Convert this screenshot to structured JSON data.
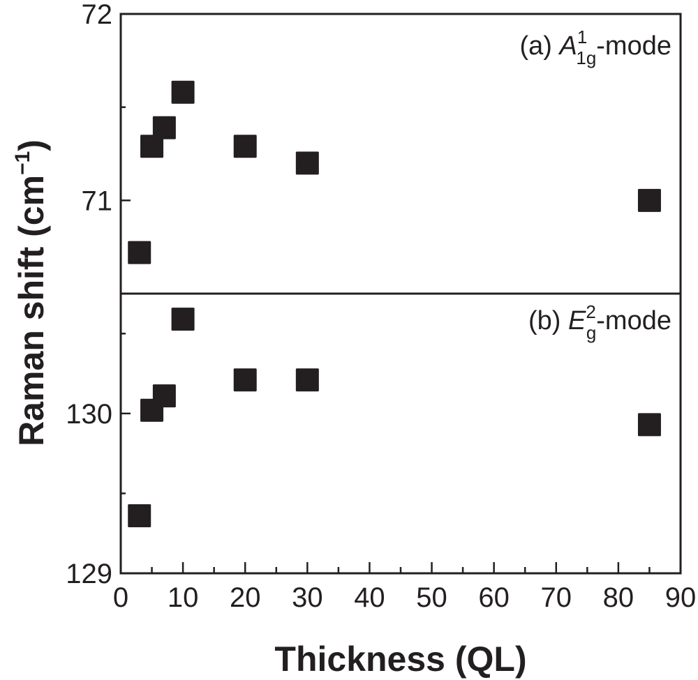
{
  "chart_data": [
    {
      "type": "scatter",
      "panel_label": "(a)",
      "mode_symbol": "A",
      "mode_sup": "1",
      "mode_sub": "1g",
      "mode_suffix": "-mode",
      "x": [
        3,
        5,
        7,
        10,
        20,
        30,
        85
      ],
      "y": [
        70.72,
        71.29,
        71.39,
        71.58,
        71.29,
        71.2,
        71.0
      ],
      "ylim": [
        70.5,
        72
      ],
      "yticks": [
        "71",
        "72"
      ],
      "marker": "square",
      "color": "#231f20"
    },
    {
      "type": "scatter",
      "panel_label": "(b)",
      "mode_symbol": "E",
      "mode_sup": "2",
      "mode_sub": "g",
      "mode_suffix": "-mode",
      "x": [
        3,
        5,
        7,
        10,
        20,
        30,
        85
      ],
      "y": [
        129.36,
        130.02,
        130.11,
        130.59,
        130.21,
        130.21,
        129.93
      ],
      "ylim": [
        129,
        130.75
      ],
      "yticks": [
        "129",
        "130"
      ],
      "marker": "square",
      "color": "#231f20"
    }
  ],
  "shared": {
    "xlabel": "Thickness (QL)",
    "ylabel_main": "Raman shift (cm",
    "ylabel_sup": "−1",
    "ylabel_close": ")",
    "xlim": [
      0,
      90
    ],
    "xticks": [
      "0",
      "10",
      "20",
      "30",
      "40",
      "50",
      "60",
      "70",
      "80",
      "90"
    ],
    "grid": false
  }
}
